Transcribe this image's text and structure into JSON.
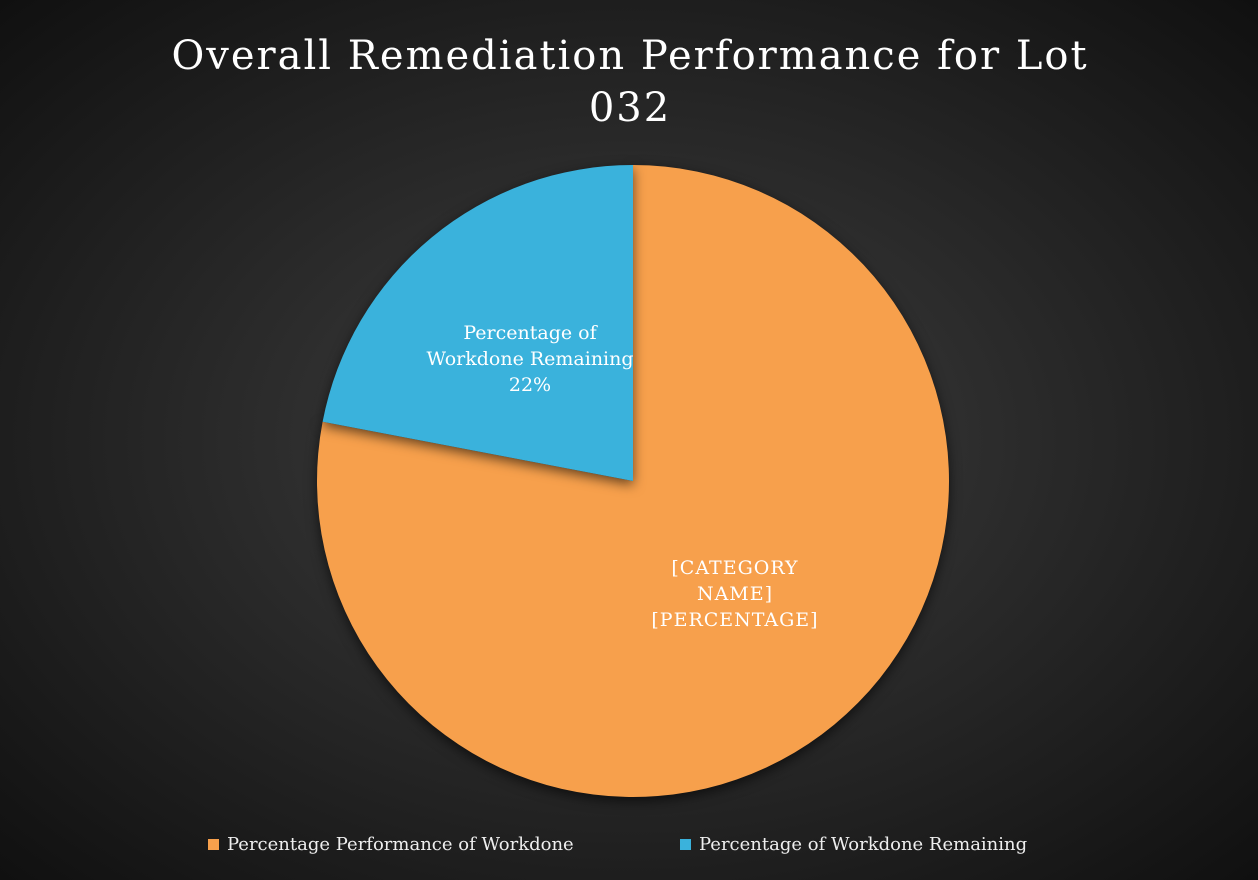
{
  "chart_data": {
    "type": "pie",
    "title": "Overall Remediation Performance for Lot 032",
    "categories": [
      "Percentage Performance of Workdone",
      "Percentage of Workdone Remaining"
    ],
    "values": [
      78,
      22
    ],
    "value_labels": [
      "[CATEGORY NAME] [PERCENTAGE]",
      "22%"
    ],
    "colors": [
      "#f7a04c",
      "#3ab2dc"
    ],
    "legend": "bottom"
  }
}
